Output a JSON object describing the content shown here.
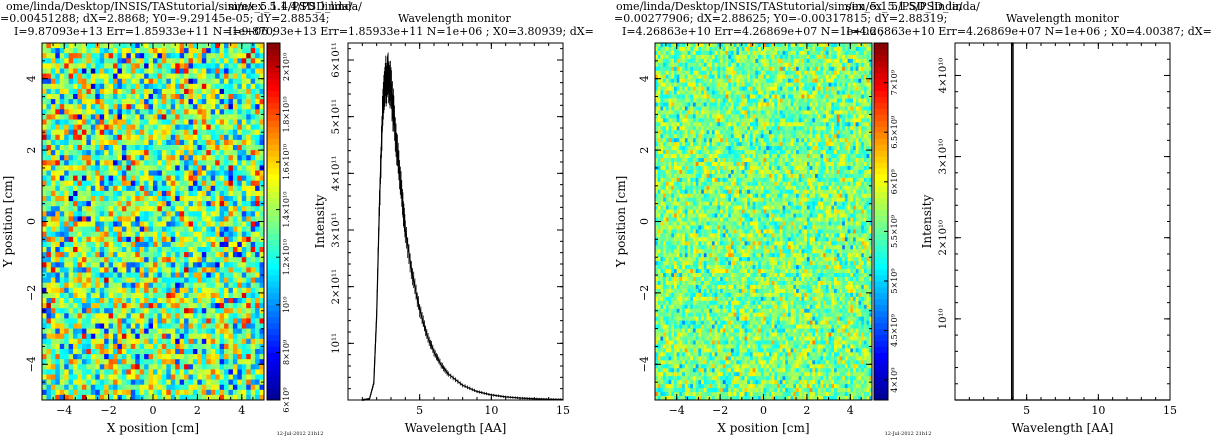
{
  "sections": [
    {
      "header_line1": "ome/linda/Desktop/INSIS/TAStutorial/sim/ex_5.1.4/PSD_linda/",
      "header_line2": "=0.00451288; dX=2.8868; Y0=-9.29145e-05; dY=2.88534;",
      "header_line3": "I=9.87093e+13 Err=1.85933e+11 N=1e+06 ;",
      "monitor_path": "sim/ex_5.1.4/PSD_linda/",
      "monitor_title": "Wavelength monitor",
      "monitor_stats": "I=9.87093e+13 Err=1.85933e+11 N=1e+06 ; X0=3.80939; dX=",
      "timestamp": "12-Jul-2012 21h12"
    },
    {
      "header_line1": "ome/linda/Desktop/INSIS/TAStutorial/sim/ex_5.1.5/PSD_linda/",
      "header_line2": "=0.00277906; dX=2.88625; Y0=-0.00317815; dY=2.88319;",
      "header_line3": "I=4.26863e+10 Err=4.26869e+07 N=1e+06 ;",
      "monitor_path": "sim/ex_5.1.5/PSD_linda/",
      "monitor_title": "Wavelength monitor",
      "monitor_stats": "I=4.26863e+10 Err=4.26869e+07 N=1e+06 ; X0=4.00387; dX=",
      "timestamp": "12-Jul-2012 21h12"
    }
  ],
  "colormap": [
    "#00008f",
    "#0000ff",
    "#0080ff",
    "#00ffff",
    "#80ff80",
    "#ffff00",
    "#ff8000",
    "#ff0000",
    "#800000"
  ],
  "chart_data": [
    {
      "type": "heatmap",
      "xlabel": "X position [cm]",
      "ylabel": "Y position [cm]",
      "xlim": [
        -5,
        5
      ],
      "ylim": [
        -5,
        5
      ],
      "x_ticks": [
        "-4",
        "-2",
        "0",
        "2",
        "4"
      ],
      "y_ticks": [
        "-4",
        "-2",
        "0",
        "2",
        "4"
      ],
      "grid_size": [
        50,
        70
      ],
      "value_range": [
        6000000000.0,
        21000000000.0
      ],
      "colorbar_ticks": [
        "6×10⁹",
        "8×10⁹",
        "10¹⁰",
        "1.2×10¹⁰",
        "1.4×10¹⁰",
        "1.6×10¹⁰",
        "1.8×10¹⁰",
        "2×10¹⁰"
      ],
      "colorbar_values": [
        6000000000.0,
        8000000000.0,
        10000000000.0,
        12000000000.0,
        14000000000.0,
        16000000000.0,
        18000000000.0,
        20000000000.0
      ],
      "distribution": "uniform noise, mean ~1.3e10"
    },
    {
      "type": "line",
      "xlabel": "Wavelength [AA]",
      "ylabel": "Intensity",
      "xlim": [
        0,
        15
      ],
      "ylim": [
        0,
        630000000000.0
      ],
      "x_ticks": [
        "5",
        "10",
        "15"
      ],
      "x_tick_values": [
        5,
        10,
        15
      ],
      "y_ticks": [
        "10¹¹",
        "2×10¹¹",
        "3×10¹¹",
        "4×10¹¹",
        "5×10¹¹",
        "6×10¹¹"
      ],
      "y_tick_values": [
        100000000000.0,
        200000000000.0,
        300000000000.0,
        400000000000.0,
        500000000000.0,
        600000000000.0
      ],
      "series": [
        {
          "x": [
            1.0,
            1.5,
            1.8,
            2.0,
            2.2,
            2.4,
            2.6,
            2.8,
            3.0,
            3.2,
            3.5,
            3.8,
            4.0,
            4.5,
            5.0,
            5.5,
            6.0,
            6.5,
            7.0,
            8.0,
            9.0,
            10.0,
            11.0,
            12.0,
            13.0,
            14.0,
            15.0
          ],
          "y": [
            0,
            2000000000.0,
            30000000000.0,
            150000000000.0,
            350000000000.0,
            500000000000.0,
            560000000000.0,
            570000000000.0,
            550000000000.0,
            500000000000.0,
            420000000000.0,
            350000000000.0,
            300000000000.0,
            220000000000.0,
            160000000000.0,
            115000000000.0,
            85000000000.0,
            62000000000.0,
            46000000000.0,
            26000000000.0,
            15000000000.0,
            9000000000.0,
            5500000000.0,
            3500000000.0,
            2200000000.0,
            1400000000.0,
            900000000.0
          ]
        }
      ]
    },
    {
      "type": "heatmap",
      "xlabel": "X position [cm]",
      "ylabel": "Y position [cm]",
      "xlim": [
        -5,
        5
      ],
      "ylim": [
        -5,
        5
      ],
      "x_ticks": [
        "-4",
        "-2",
        "0",
        "2",
        "4"
      ],
      "y_ticks": [
        "-4",
        "-2",
        "0",
        "2",
        "4"
      ],
      "grid_size": [
        80,
        90
      ],
      "value_range": [
        3800000000.0,
        7400000000.0
      ],
      "colorbar_ticks": [
        "4×10⁹",
        "4.5×10⁹",
        "5×10⁹",
        "5.5×10⁹",
        "6×10⁹",
        "6.5×10⁹",
        "7×10⁹"
      ],
      "colorbar_values": [
        4000000000.0,
        4500000000.0,
        5000000000.0,
        5500000000.0,
        6000000000.0,
        6500000000.0,
        7000000000.0
      ],
      "distribution": "uniform noise, mean ~5.4e9"
    },
    {
      "type": "line",
      "xlabel": "Wavelength [AA]",
      "ylabel": "Intensity",
      "xlim": [
        0,
        15
      ],
      "ylim": [
        0,
        44000000000.0
      ],
      "x_ticks": [
        "5",
        "10",
        "15"
      ],
      "x_tick_values": [
        5,
        10,
        15
      ],
      "y_ticks": [
        "10¹⁰",
        "2×10¹⁰",
        "3×10¹⁰",
        "4×10¹⁰"
      ],
      "y_tick_values": [
        10000000000.0,
        20000000000.0,
        30000000000.0,
        40000000000.0
      ],
      "series": [
        {
          "x": [
            0,
            3.95,
            3.95,
            4.05,
            4.05,
            15
          ],
          "y": [
            0,
            0,
            44000000000.0,
            44000000000.0,
            0,
            0
          ]
        }
      ]
    }
  ]
}
